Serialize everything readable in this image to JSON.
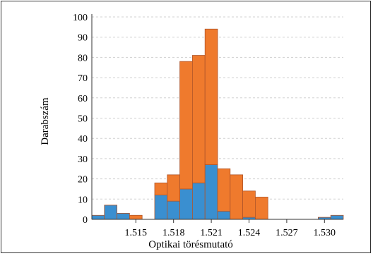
{
  "colors": {
    "series_1": "#3a8fd0",
    "series_2": "#ef7a2d",
    "bar_edge": "#b0562a",
    "grid": "#d0d0d0",
    "axis": "#333333"
  },
  "chart_data": {
    "type": "bar",
    "subtype": "stacked-histogram",
    "title": "",
    "xlabel": "Optikai törésmutató",
    "ylabel": "Darabszám",
    "xlim": [
      1.5115,
      1.5315
    ],
    "ylim": [
      0,
      100
    ],
    "bin_width": 0.001,
    "x_ticks": [
      "1.515",
      "1.518",
      "1.521",
      "1.524",
      "1.527",
      "1.530"
    ],
    "y_ticks": [
      "0",
      "10",
      "20",
      "30",
      "40",
      "50",
      "60",
      "70",
      "80",
      "90",
      "100"
    ],
    "grid": "horizontal, dashed",
    "legend": "none",
    "bin_starts": [
      1.5115,
      1.5125,
      1.5135,
      1.5145,
      1.5155,
      1.5165,
      1.5175,
      1.5185,
      1.5195,
      1.5205,
      1.5215,
      1.5225,
      1.5235,
      1.5245,
      1.5255,
      1.5265,
      1.5275,
      1.5285,
      1.5295,
      1.5305
    ],
    "series": [
      {
        "values": [
          2,
          7,
          3,
          0,
          0,
          12,
          9,
          15,
          18,
          27,
          4,
          0,
          1,
          0,
          0,
          0,
          0,
          0,
          1,
          2
        ]
      },
      {
        "values": [
          0,
          0,
          0,
          2,
          0,
          6,
          13,
          63,
          63,
          67,
          21,
          22,
          13,
          11,
          0,
          0,
          0,
          0,
          0,
          0
        ]
      }
    ]
  }
}
